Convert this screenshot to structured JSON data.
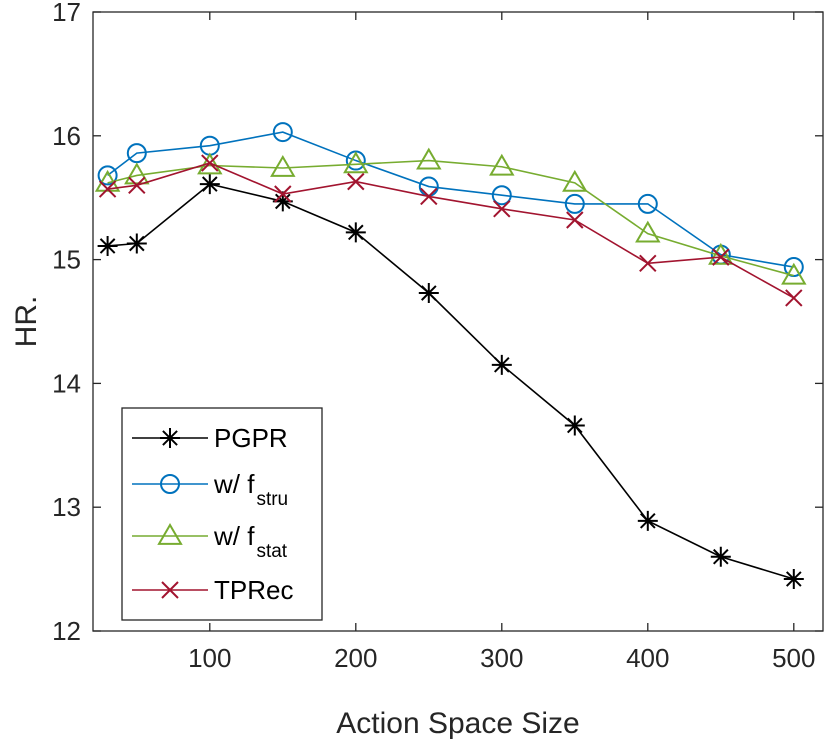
{
  "chart_data": {
    "type": "line",
    "title": "",
    "xlabel": "Action Space Size",
    "ylabel": "HR.",
    "xlim": [
      20,
      520
    ],
    "ylim": [
      12,
      17
    ],
    "xticks": [
      100,
      200,
      300,
      400,
      500
    ],
    "yticks": [
      12,
      13,
      14,
      15,
      16,
      17
    ],
    "grid": false,
    "legend_position": "bottom-left",
    "x": [
      30,
      50,
      100,
      150,
      200,
      250,
      300,
      350,
      400,
      450,
      500
    ],
    "series": [
      {
        "name": "PGPR",
        "legend_main": "PGPR",
        "legend_sub": "",
        "marker": "asterisk",
        "color": "#000000",
        "values": [
          15.11,
          15.13,
          15.61,
          15.47,
          15.22,
          14.73,
          14.15,
          13.66,
          12.89,
          12.6,
          12.42
        ]
      },
      {
        "name": "w/ f_stru",
        "legend_main": "w/ f",
        "legend_sub": "stru",
        "marker": "circle",
        "color": "#0072BD",
        "values": [
          15.68,
          15.86,
          15.92,
          16.03,
          15.8,
          15.59,
          15.52,
          15.45,
          15.45,
          15.04,
          14.94
        ]
      },
      {
        "name": "w/ f_stat",
        "legend_main": "w/ f",
        "legend_sub": "stat",
        "marker": "triangle",
        "color": "#77AC30",
        "values": [
          15.62,
          15.68,
          15.76,
          15.74,
          15.77,
          15.8,
          15.75,
          15.62,
          15.21,
          15.03,
          14.87
        ]
      },
      {
        "name": "TPRec",
        "legend_main": "TPRec",
        "legend_sub": "",
        "marker": "x",
        "color": "#A2142F",
        "values": [
          15.57,
          15.6,
          15.78,
          15.53,
          15.63,
          15.51,
          15.41,
          15.32,
          14.97,
          15.02,
          14.69
        ]
      }
    ]
  }
}
